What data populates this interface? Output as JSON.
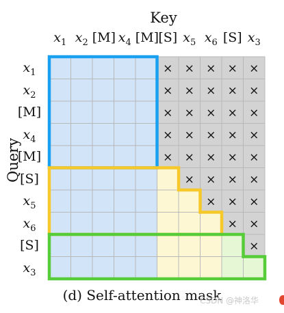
{
  "key_title": "Key",
  "query_title": "Query",
  "caption": "(d)  Self-attention mask",
  "watermark": "CSDN @神洛华",
  "columns": [
    {
      "text": "x1",
      "base": "x",
      "sub": "1"
    },
    {
      "text": "x2",
      "base": "x",
      "sub": "2"
    },
    {
      "text": "[M]",
      "base": "[M]",
      "sub": ""
    },
    {
      "text": "x4",
      "base": "x",
      "sub": "4"
    },
    {
      "text": "[M]",
      "base": "[M]",
      "sub": ""
    },
    {
      "text": "[S]",
      "base": "[S]",
      "sub": ""
    },
    {
      "text": "x5",
      "base": "x",
      "sub": "5"
    },
    {
      "text": "x6",
      "base": "x",
      "sub": "6"
    },
    {
      "text": "[S]",
      "base": "[S]",
      "sub": ""
    },
    {
      "text": "x3",
      "base": "x",
      "sub": "3"
    }
  ],
  "rows": [
    {
      "text": "x1",
      "base": "x",
      "sub": "1"
    },
    {
      "text": "x2",
      "base": "x",
      "sub": "2"
    },
    {
      "text": "[M]",
      "base": "[M]",
      "sub": ""
    },
    {
      "text": "x4",
      "base": "x",
      "sub": "4"
    },
    {
      "text": "[M]",
      "base": "[M]",
      "sub": ""
    },
    {
      "text": "[S]",
      "base": "[S]",
      "sub": ""
    },
    {
      "text": "x5",
      "base": "x",
      "sub": "5"
    },
    {
      "text": "x6",
      "base": "x",
      "sub": "6"
    },
    {
      "text": "[S]",
      "base": "[S]",
      "sub": ""
    },
    {
      "text": "x3",
      "base": "x",
      "sub": "3"
    }
  ],
  "mask_symbol": "×",
  "mask": [
    [
      0,
      0,
      0,
      0,
      0,
      1,
      1,
      1,
      1,
      1
    ],
    [
      0,
      0,
      0,
      0,
      0,
      1,
      1,
      1,
      1,
      1
    ],
    [
      0,
      0,
      0,
      0,
      0,
      1,
      1,
      1,
      1,
      1
    ],
    [
      0,
      0,
      0,
      0,
      0,
      1,
      1,
      1,
      1,
      1
    ],
    [
      0,
      0,
      0,
      0,
      0,
      1,
      1,
      1,
      1,
      1
    ],
    [
      0,
      0,
      0,
      0,
      0,
      0,
      1,
      1,
      1,
      1
    ],
    [
      0,
      0,
      0,
      0,
      0,
      0,
      0,
      1,
      1,
      1
    ],
    [
      0,
      0,
      0,
      0,
      0,
      0,
      0,
      0,
      1,
      1
    ],
    [
      0,
      0,
      0,
      0,
      0,
      0,
      0,
      0,
      0,
      1
    ],
    [
      0,
      0,
      0,
      0,
      0,
      0,
      0,
      0,
      0,
      0
    ]
  ],
  "colors": {
    "part_a_fill": "#d2e4f8",
    "part_b_fill": "#fdf7d4",
    "part_c_fill": "#e6f7d6",
    "masked_fill": "#d3d3d3",
    "grid_line": "#b8b8b8",
    "part_a_border": "#1aa0f0",
    "part_b_border": "#f7c82a",
    "part_c_border": "#55cc38"
  },
  "segments": {
    "part_a": [
      0,
      5
    ],
    "part_b": [
      5,
      8
    ],
    "part_c": [
      8,
      10
    ]
  }
}
